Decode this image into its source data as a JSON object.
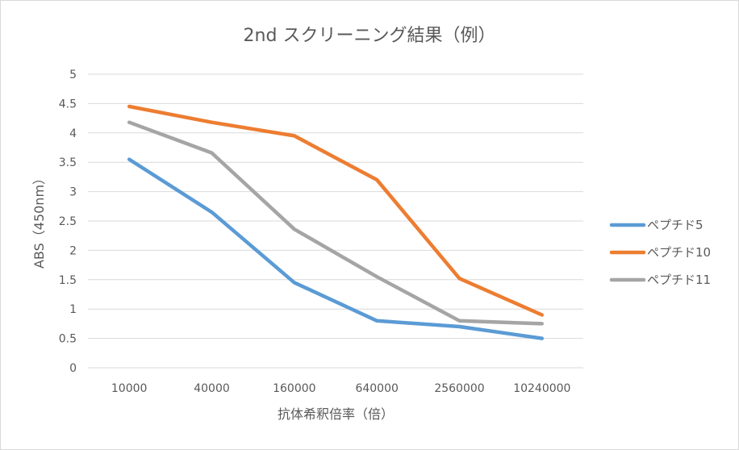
{
  "chart_data": {
    "type": "line",
    "title": "2nd スクリーニング結果（例）",
    "xlabel": "抗体希釈倍率（倍）",
    "ylabel": "ABS（450nm）",
    "categories": [
      "10000",
      "40000",
      "160000",
      "640000",
      "2560000",
      "10240000"
    ],
    "yticks": [
      "0",
      "0.5",
      "1",
      "1.5",
      "2",
      "2.5",
      "3",
      "3.5",
      "4",
      "4.5",
      "5"
    ],
    "ylim": [
      0,
      5
    ],
    "grid": true,
    "legend_position": "right",
    "series": [
      {
        "name": "ペプチド5",
        "color": "#5b9bd5",
        "values": [
          3.55,
          2.65,
          1.45,
          0.8,
          0.7,
          0.5
        ]
      },
      {
        "name": "ペプチド10",
        "color": "#ed7d31",
        "values": [
          4.45,
          4.18,
          3.95,
          3.2,
          1.52,
          0.9
        ]
      },
      {
        "name": "ペプチド11",
        "color": "#a5a5a5",
        "values": [
          4.18,
          3.66,
          2.36,
          1.55,
          0.8,
          0.75
        ]
      }
    ]
  }
}
